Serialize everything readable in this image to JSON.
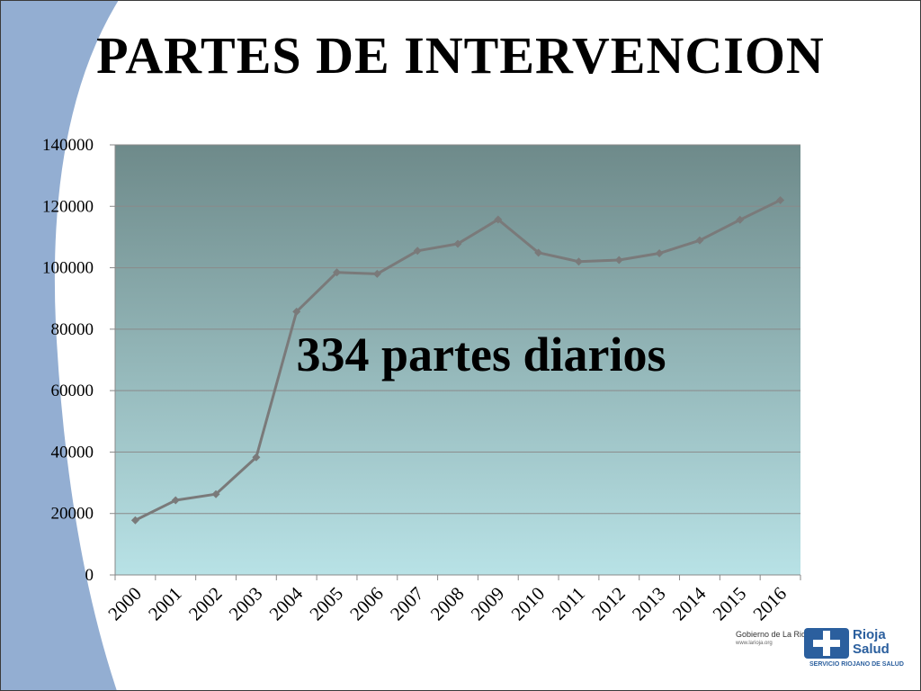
{
  "slide": {
    "title": "PARTES DE INTERVENCION",
    "annotation": "334 partes diarios"
  },
  "logo": {
    "gobierno": "Gobierno de La Rioja",
    "url": "www.larioja.org",
    "name_line1": "Rioja",
    "name_line2": "Salud",
    "subtitle": "SERVICIO RIOJANO DE SALUD"
  },
  "colors": {
    "line": "#7a7a7a",
    "plot_top": "#6e8a8a",
    "plot_bottom": "#b8e2e6",
    "deco_blue": "#93aed2",
    "brand_blue": "#2b5f9e"
  },
  "chart_data": {
    "type": "line",
    "title": "PARTES DE INTERVENCION",
    "xlabel": "",
    "ylabel": "",
    "categories": [
      "2000",
      "2001",
      "2002",
      "2003",
      "2004",
      "2005",
      "2006",
      "2007",
      "2008",
      "2009",
      "2010",
      "2011",
      "2012",
      "2013",
      "2014",
      "2015",
      "2016"
    ],
    "series": [
      {
        "values": [
          17800,
          24300,
          26300,
          38300,
          85700,
          98500,
          98000,
          105500,
          107800,
          115700,
          104900,
          102000,
          102500,
          104700,
          108900,
          115600,
          122000
        ]
      }
    ],
    "ylim": [
      0,
      140000
    ],
    "yticks": [
      0,
      20000,
      40000,
      60000,
      80000,
      100000,
      120000,
      140000
    ],
    "grid": true,
    "legend": "none",
    "annotation": "334 partes diarios"
  }
}
